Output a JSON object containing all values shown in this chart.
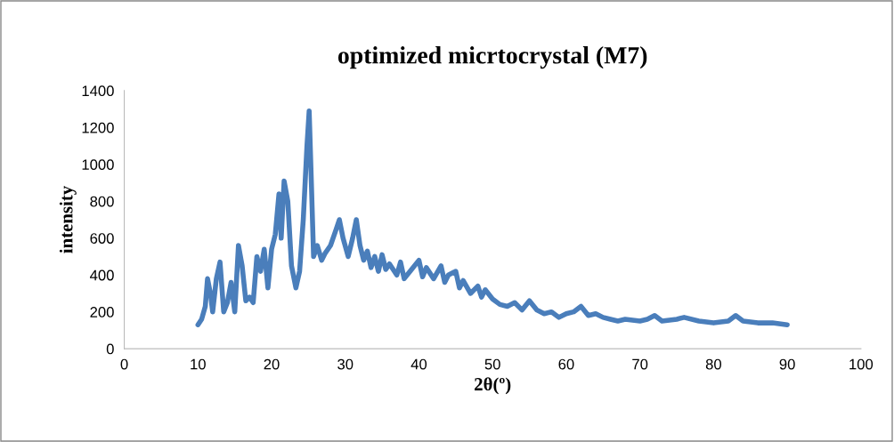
{
  "chart_data": {
    "type": "line",
    "title": "optimized micrtocrystal (M7)",
    "xlabel": "2θ(º)",
    "ylabel": "intensity",
    "xlim": [
      0,
      100
    ],
    "xticks": [
      0,
      10,
      20,
      30,
      40,
      50,
      60,
      70,
      80,
      90,
      100
    ],
    "ylim": [
      0,
      1400
    ],
    "yticks": [
      0,
      200,
      400,
      600,
      800,
      1000,
      1200,
      1400
    ],
    "grid": false,
    "marker": "none",
    "line_style": "solid",
    "series": [
      {
        "color": "#4a7ebb",
        "x": [
          10,
          10.5,
          11,
          11.3,
          11.7,
          12,
          12.5,
          13,
          13.5,
          14,
          14.5,
          15,
          15.5,
          16,
          16.5,
          17,
          17.5,
          18,
          18.5,
          19,
          19.5,
          20,
          20.5,
          21,
          21.3,
          21.7,
          22.2,
          22.7,
          23.3,
          23.8,
          24.3,
          24.8,
          25.1,
          25.4,
          25.7,
          26.2,
          26.8,
          27.3,
          28,
          28.7,
          29.2,
          29.7,
          30.4,
          31,
          31.5,
          32,
          32.5,
          33,
          33.5,
          34,
          34.5,
          35,
          35.5,
          36,
          37,
          37.5,
          38,
          39,
          40,
          40.5,
          41,
          42,
          43,
          43.5,
          44,
          45,
          45.5,
          46,
          47,
          48,
          48.5,
          49,
          50,
          51,
          52,
          53,
          54,
          55,
          56,
          57,
          58,
          59,
          60,
          61,
          62,
          63,
          64,
          65,
          66,
          67,
          68,
          70,
          71,
          72,
          73,
          75,
          76,
          78,
          80,
          82,
          83,
          84,
          86,
          88,
          90
        ],
        "values": [
          130,
          160,
          230,
          380,
          300,
          200,
          380,
          470,
          200,
          250,
          360,
          200,
          560,
          450,
          260,
          280,
          250,
          500,
          420,
          540,
          330,
          540,
          620,
          840,
          600,
          910,
          800,
          450,
          330,
          420,
          700,
          1100,
          1290,
          900,
          500,
          560,
          480,
          520,
          560,
          640,
          700,
          600,
          500,
          600,
          700,
          560,
          480,
          530,
          440,
          500,
          420,
          510,
          430,
          460,
          400,
          470,
          380,
          430,
          480,
          390,
          440,
          380,
          450,
          360,
          400,
          420,
          330,
          370,
          300,
          340,
          280,
          320,
          270,
          240,
          230,
          250,
          210,
          260,
          210,
          190,
          200,
          170,
          190,
          200,
          230,
          180,
          190,
          170,
          160,
          150,
          160,
          150,
          160,
          180,
          150,
          160,
          170,
          150,
          140,
          150,
          180,
          150,
          140,
          140,
          130
        ]
      }
    ]
  }
}
